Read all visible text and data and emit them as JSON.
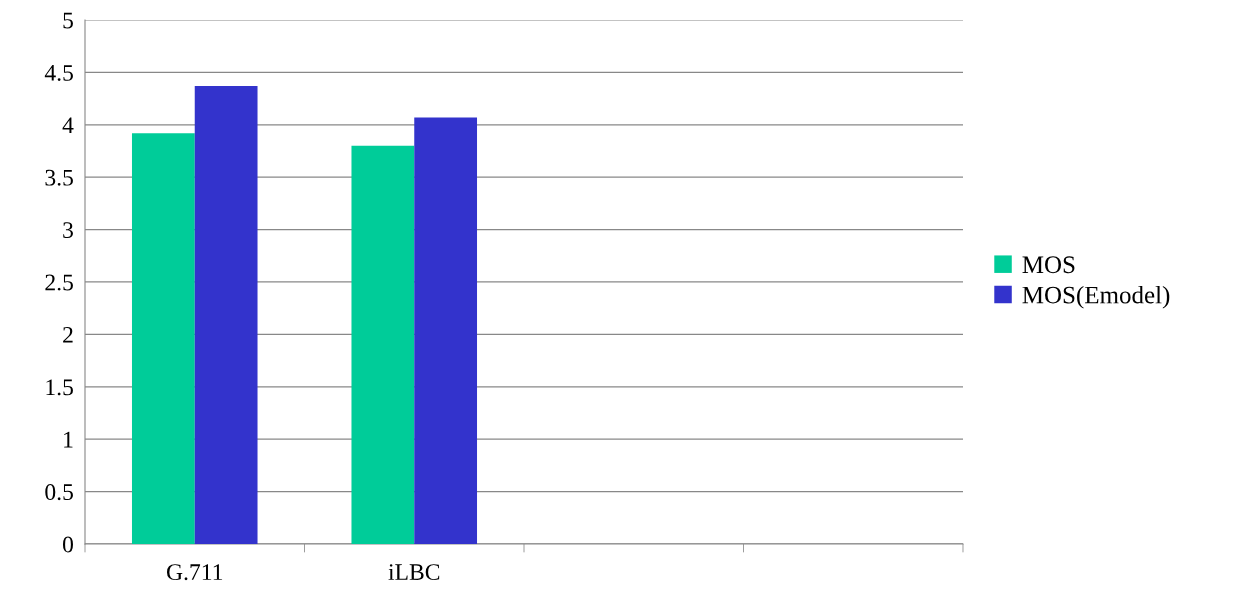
{
  "chart_data": {
    "type": "bar",
    "categories": [
      "G.711",
      "iLBC",
      null,
      null
    ],
    "series": [
      {
        "name": "MOS",
        "color": "#00cc99",
        "values": [
          3.92,
          3.8,
          null,
          null
        ]
      },
      {
        "name": "MOS(Emodel)",
        "color": "#3333cc",
        "values": [
          4.37,
          4.07,
          null,
          null
        ]
      }
    ],
    "ylim": [
      0,
      5
    ],
    "yticks": [
      0,
      0.5,
      1,
      1.5,
      2,
      2.5,
      3,
      3.5,
      4,
      4.5,
      5
    ],
    "grid": "y",
    "legend": "right"
  }
}
